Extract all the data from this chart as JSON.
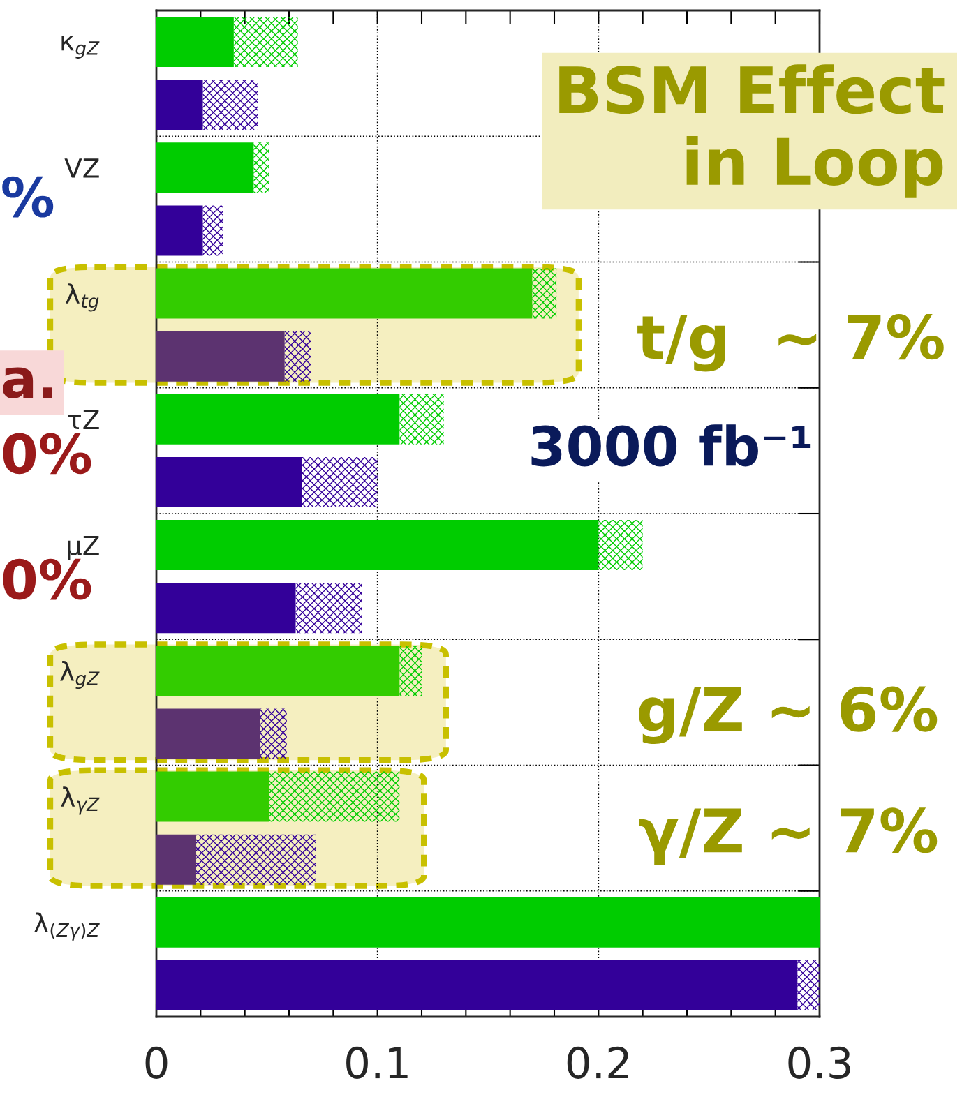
{
  "chart_data": {
    "type": "bar",
    "orientation": "horizontal",
    "stacked": true,
    "categories": [
      "κ$_{gZ}$",
      null,
      "VZ",
      null,
      "λ$_{tg}$",
      null,
      "τZ",
      null,
      "μZ",
      null,
      "λ$_{gZ}$",
      null,
      "λ$_{γZ}$",
      null,
      "λ$_{(Zγ)Z}$",
      null
    ],
    "series": [
      {
        "colors": [
          "#00cc00",
          "#330099",
          "#00cc00",
          "#330099",
          "#33cc00",
          "#5c3370",
          "#00cc00",
          "#330099",
          "#00cc00",
          "#330099",
          "#33cc00",
          "#5c3370",
          "#33cc00",
          "#5c3370",
          "#00cc00",
          "#330099"
        ],
        "values": [
          0.035,
          0.021,
          0.044,
          0.021,
          0.17,
          0.058,
          0.11,
          0.066,
          0.2,
          0.063,
          0.11,
          0.047,
          0.051,
          0.018,
          0.3,
          0.29
        ]
      },
      {
        "colors": [
          "#00cc00",
          "#330099",
          "#00cc00",
          "#330099",
          "#00cc00",
          "#330099",
          "#00cc00",
          "#330099",
          "#00cc00",
          "#330099",
          "#00cc00",
          "#330099",
          "#00cc00",
          "#330099",
          "#00cc00",
          "#330099"
        ],
        "values": [
          0.029,
          0.025,
          0.007,
          0.009,
          0.011,
          0.012,
          0.02,
          0.034,
          0.02,
          0.03,
          0.01,
          0.012,
          0.059,
          0.054,
          null,
          0.01
        ]
      }
    ],
    "xlim": [
      0,
      0.3
    ],
    "xticks": [
      0,
      0.1,
      0.2,
      0.3
    ],
    "grid": true,
    "annotations": [
      "BSM Effect\nin Loop",
      "t/g  ~ 7%",
      "g/Z ~ 6%",
      "γ/Z ~ 7%",
      "3000 fb⁻¹",
      "%",
      "a.",
      "0%",
      "0%"
    ]
  }
}
